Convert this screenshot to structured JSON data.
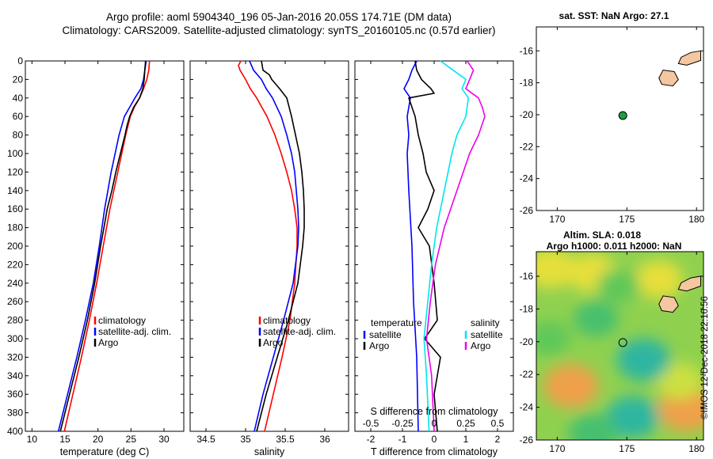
{
  "header": {
    "line1": "Argo profile: aoml 5904340_196 05-Jan-2016 20.05S 174.71E (DM data)",
    "line2": "Climatology: CARS2009. Satellite-adjusted climatology: synTS_20160105.nc (0.57d earlier)"
  },
  "watermark": "©IMOS 12-Dec-2018 22:16:56",
  "colors": {
    "climatology": "#ff0000",
    "satellite": "#0000ff",
    "argo": "#000000",
    "cyan": "#00e5ee",
    "magenta": "#ee00ee",
    "land": "#f4c7a0"
  },
  "chart_data": [
    {
      "type": "line",
      "id": "temperature",
      "xlabel": "temperature (deg C)",
      "ylabel": "depth",
      "xlim": [
        9,
        33
      ],
      "ylim": [
        0,
        400
      ],
      "y_reversed": true,
      "xticks": [
        10,
        15,
        20,
        25,
        30
      ],
      "yticks": [
        0,
        20,
        40,
        60,
        80,
        100,
        120,
        140,
        160,
        180,
        200,
        220,
        240,
        260,
        280,
        300,
        320,
        340,
        360,
        380,
        400
      ],
      "ytick_labels": [
        "0",
        "20",
        "40",
        "60",
        "80",
        "100",
        "120",
        "140",
        "160",
        "180",
        "200",
        "220",
        "240",
        "260",
        "280",
        "300",
        "320",
        "340",
        "360",
        "380",
        "400"
      ],
      "legend": {
        "position": "lower-right",
        "entries": [
          "climatology",
          "satellite-adj. clim.",
          "Argo"
        ]
      },
      "series": [
        {
          "name": "climatology",
          "color": "#ff0000",
          "depth": [
            0,
            10,
            20,
            30,
            40,
            50,
            60,
            80,
            100,
            120,
            140,
            160,
            180,
            200,
            240,
            280,
            320,
            360,
            400
          ],
          "values": [
            27.8,
            27.7,
            27.4,
            26.9,
            26.3,
            25.5,
            24.9,
            24.2,
            23.6,
            23.0,
            22.4,
            21.8,
            21.3,
            20.8,
            19.8,
            18.7,
            17.5,
            16.2,
            14.9
          ]
        },
        {
          "name": "satellite-adj. clim.",
          "color": "#0000ff",
          "depth": [
            0,
            10,
            20,
            30,
            40,
            50,
            60,
            80,
            100,
            120,
            140,
            160,
            180,
            200,
            240,
            280,
            320,
            360,
            400
          ],
          "values": [
            27.3,
            27.1,
            26.9,
            26.5,
            25.6,
            24.8,
            24.0,
            23.2,
            22.6,
            22.0,
            21.5,
            21.0,
            20.6,
            20.2,
            19.3,
            18.1,
            16.8,
            15.4,
            14.0
          ]
        },
        {
          "name": "Argo",
          "color": "#000000",
          "depth": [
            0,
            10,
            20,
            30,
            40,
            50,
            60,
            70,
            80,
            100,
            120,
            140,
            160,
            180,
            200,
            240,
            280,
            320,
            360,
            400
          ],
          "values": [
            27.2,
            27.1,
            27.0,
            26.8,
            26.3,
            25.4,
            24.8,
            24.4,
            24.1,
            23.4,
            22.7,
            22.1,
            21.4,
            20.9,
            20.4,
            19.5,
            18.4,
            17.1,
            15.7,
            14.3
          ]
        }
      ]
    },
    {
      "type": "line",
      "id": "salinity",
      "xlabel": "salinity",
      "xlim": [
        34.3,
        36.3
      ],
      "ylim": [
        0,
        400
      ],
      "y_reversed": true,
      "xticks": [
        34.5,
        35,
        35.5,
        36
      ],
      "xtick_labels": [
        "34.5",
        "35",
        "35.5",
        "36"
      ],
      "legend": {
        "position": "lower-right",
        "entries": [
          "climatology",
          "satellite-adj. clim.",
          "Argo"
        ]
      },
      "series": [
        {
          "name": "climatology",
          "color": "#ff0000",
          "depth": [
            0,
            5,
            10,
            20,
            30,
            40,
            60,
            80,
            100,
            120,
            140,
            160,
            180,
            200,
            240,
            280,
            320,
            360,
            400
          ],
          "values": [
            34.94,
            34.91,
            34.93,
            35.0,
            35.06,
            35.14,
            35.27,
            35.37,
            35.45,
            35.52,
            35.58,
            35.62,
            35.65,
            35.65,
            35.62,
            35.56,
            35.46,
            35.35,
            35.24
          ]
        },
        {
          "name": "satellite-adj. clim.",
          "color": "#0000ff",
          "depth": [
            0,
            10,
            20,
            30,
            40,
            60,
            80,
            100,
            120,
            140,
            160,
            180,
            200,
            240,
            280,
            320,
            360,
            400
          ],
          "values": [
            35.05,
            35.1,
            35.2,
            35.26,
            35.34,
            35.45,
            35.52,
            35.58,
            35.62,
            35.64,
            35.66,
            35.67,
            35.66,
            35.6,
            35.48,
            35.35,
            35.22,
            35.11
          ]
        },
        {
          "name": "Argo",
          "color": "#000000",
          "depth": [
            0,
            10,
            15,
            20,
            30,
            40,
            60,
            80,
            100,
            120,
            140,
            160,
            180,
            200,
            240,
            280,
            320,
            360,
            400
          ],
          "values": [
            35.2,
            35.22,
            35.3,
            35.33,
            35.43,
            35.52,
            35.58,
            35.63,
            35.68,
            35.71,
            35.73,
            35.74,
            35.74,
            35.72,
            35.66,
            35.54,
            35.4,
            35.26,
            35.14
          ]
        }
      ]
    },
    {
      "type": "line",
      "id": "difference",
      "xlabel": "T difference from climatology",
      "top_label": "S difference from climatology",
      "xlim": [
        -2.5,
        2.5
      ],
      "ylim": [
        0,
        400
      ],
      "y_reversed": true,
      "xticks": [
        -2,
        -1,
        0,
        1,
        2
      ],
      "xtick_labels": [
        "-2",
        "-1",
        "0",
        "1",
        "2"
      ],
      "s_ticks": [
        -0.5,
        -0.25,
        0,
        0.25,
        0.5
      ],
      "s_tick_labels": [
        "-0.5",
        "-0.25",
        "0",
        "0.25",
        "0.5"
      ],
      "legend_left": {
        "title": "temperature",
        "entries": [
          "satellite",
          "Argo"
        ]
      },
      "legend_right": {
        "title": "salinity",
        "entries": [
          "satellite",
          "Argo"
        ]
      },
      "series": [
        {
          "name": "T satellite",
          "color": "#0000ff",
          "depth": [
            0,
            10,
            20,
            30,
            40,
            60,
            80,
            100,
            140,
            200,
            260,
            320,
            400
          ],
          "values": [
            -0.55,
            -0.7,
            -0.8,
            -0.95,
            -0.75,
            -0.85,
            -0.8,
            -0.85,
            -0.8,
            -0.7,
            -0.65,
            -0.55,
            -0.5
          ]
        },
        {
          "name": "T Argo",
          "color": "#000000",
          "depth": [
            0,
            10,
            20,
            30,
            35,
            40,
            60,
            80,
            100,
            120,
            140,
            160,
            180,
            200,
            240,
            280,
            300,
            320,
            360,
            400
          ],
          "values": [
            -0.6,
            -0.55,
            -0.4,
            -0.1,
            0.0,
            -0.8,
            -0.6,
            -0.5,
            -0.35,
            -0.25,
            0.0,
            -0.2,
            -0.5,
            -0.15,
            0.0,
            0.1,
            -0.3,
            0.2,
            0.0,
            0.1
          ]
        },
        {
          "name": "S satellite",
          "color": "#00e5ee",
          "depth": [
            0,
            10,
            20,
            30,
            40,
            60,
            80,
            100,
            140,
            180,
            220,
            260,
            300,
            340,
            400
          ],
          "values": [
            0.05,
            0.15,
            0.25,
            0.22,
            0.27,
            0.25,
            0.18,
            0.14,
            0.08,
            0.02,
            -0.02,
            -0.05,
            -0.08,
            -0.06,
            -0.04
          ]
        },
        {
          "name": "S Argo",
          "color": "#ee00ee",
          "depth": [
            0,
            10,
            20,
            30,
            40,
            50,
            60,
            80,
            100,
            140,
            180,
            220,
            260,
            300,
            340,
            400
          ],
          "values": [
            0.26,
            0.31,
            0.28,
            0.25,
            0.35,
            0.38,
            0.4,
            0.35,
            0.28,
            0.18,
            0.08,
            0.01,
            -0.03,
            -0.06,
            -0.02,
            0.0
          ]
        }
      ]
    },
    {
      "type": "map",
      "id": "sst_map",
      "title": "sat. SST: NaN Argo: 27.1",
      "xlim": [
        168.5,
        180.5
      ],
      "ylim": [
        -26,
        -14.5
      ],
      "xticks": [
        170,
        175,
        180
      ],
      "xtick_labels": [
        "170",
        "175",
        "180"
      ],
      "yticks": [
        -16,
        -18,
        -20,
        -22,
        -24,
        -26
      ],
      "ytick_labels": [
        "-16",
        "-18",
        "-20",
        "-22",
        "-24",
        "-26"
      ],
      "profile_location": {
        "lon": 174.71,
        "lat": -20.05,
        "color": "#1e9e3c"
      }
    },
    {
      "type": "heatmap",
      "id": "altimetry_map",
      "title_line1": "Altim. SLA: 0.018",
      "title_line2": "Argo h1000: 0.011 h2000: NaN",
      "xlim": [
        168.5,
        180.5
      ],
      "ylim": [
        -26,
        -14.5
      ],
      "xticks": [
        170,
        175,
        180
      ],
      "xtick_labels": [
        "170",
        "175",
        "180"
      ],
      "yticks": [
        -16,
        -18,
        -20,
        -22,
        -24,
        -26
      ],
      "ytick_labels": [
        "-16",
        "-18",
        "-20",
        "-22",
        "-24",
        "-26"
      ],
      "profile_location": {
        "lon": 174.71,
        "lat": -20.05
      },
      "blobs": [
        {
          "lon": 171.0,
          "lat": -22.7,
          "sla": 0.9
        },
        {
          "lon": 169.5,
          "lat": -15.5,
          "sla": 0.7
        },
        {
          "lon": 172.5,
          "lat": -15.8,
          "sla": 0.65
        },
        {
          "lon": 179.3,
          "lat": -24.1,
          "sla": 1.0
        },
        {
          "lon": 177.3,
          "lat": -16.2,
          "sla": 0.6
        },
        {
          "lon": 178.8,
          "lat": -22.4,
          "sla": 0.5
        },
        {
          "lon": 175.4,
          "lat": -24.6,
          "sla": -0.8
        },
        {
          "lon": 176.2,
          "lat": -21.1,
          "sla": -0.85
        },
        {
          "lon": 172.6,
          "lat": -25.6,
          "sla": -0.7
        },
        {
          "lon": 172.8,
          "lat": -18.6,
          "sla": -0.45
        },
        {
          "lon": 169.4,
          "lat": -19.8,
          "sla": -0.4
        },
        {
          "lon": 174.4,
          "lat": -16.6,
          "sla": -0.35
        }
      ]
    }
  ]
}
